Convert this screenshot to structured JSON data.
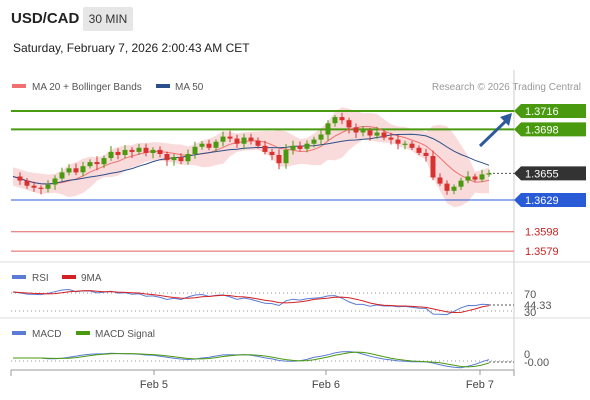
{
  "header": {
    "symbol": "USD/CAD",
    "timeframe": "30 MIN",
    "datetime": "Saturday, February 7, 2026 2:00:43 AM CET"
  },
  "legend": {
    "ma20_label": "MA 20 + Bollinger Bands",
    "ma50_label": "MA 50",
    "ma20_color": "#f07070",
    "ma50_color": "#2b4f8a",
    "credit": "Research © 2026 Trading Central"
  },
  "chart_data": [
    {
      "type": "candlestick",
      "panel": "price",
      "x_labels": [
        "Feb 5",
        "Feb 6",
        "Feb 7"
      ],
      "ylim": [
        1.357,
        1.374
      ],
      "price_path": [
        1.3652,
        1.3648,
        1.3643,
        1.3641,
        1.364,
        1.3644,
        1.365,
        1.3656,
        1.366,
        1.3656,
        1.3662,
        1.3666,
        1.3664,
        1.367,
        1.3676,
        1.3673,
        1.3678,
        1.3676,
        1.368,
        1.3675,
        1.3678,
        1.3674,
        1.3668,
        1.3671,
        1.3667,
        1.3674,
        1.3681,
        1.3684,
        1.368,
        1.3686,
        1.3691,
        1.3689,
        1.3684,
        1.369,
        1.3687,
        1.3682,
        1.3676,
        1.3673,
        1.3665,
        1.3678,
        1.3682,
        1.3679,
        1.3684,
        1.3688,
        1.3693,
        1.3704,
        1.371,
        1.3707,
        1.37,
        1.3695,
        1.3697,
        1.3692,
        1.3695,
        1.369,
        1.3688,
        1.3684,
        1.3684,
        1.368,
        1.3675,
        1.3672,
        1.3651,
        1.3645,
        1.3638,
        1.3642,
        1.3648,
        1.3652,
        1.3649,
        1.3654,
        1.3655
      ],
      "levels": [
        {
          "value": "1.3716",
          "kind": "resistance",
          "color": "#4a9a0f"
        },
        {
          "value": "1.3698",
          "kind": "resistance",
          "color": "#4a9a0f"
        },
        {
          "value": "1.3655",
          "kind": "last_price",
          "color": "#333333"
        },
        {
          "value": "1.3629",
          "kind": "support",
          "color": "#2a5bd7"
        },
        {
          "value": "1.3598",
          "kind": "support",
          "color": "#e06060"
        },
        {
          "value": "1.3579",
          "kind": "support",
          "color": "#e06060"
        }
      ],
      "forecast_arrow_target": 1.3716,
      "bollinger_color": "#f9d2d2",
      "candle_up_color": "#4a9a0f",
      "candle_down_color": "#d93030"
    },
    {
      "type": "line",
      "panel": "rsi",
      "series": [
        {
          "name": "RSI",
          "color": "#5b7bd5"
        },
        {
          "name": "9MA",
          "color": "#d42020"
        }
      ],
      "ticks": [
        "70",
        "30"
      ],
      "last_value": "44.33"
    },
    {
      "type": "line",
      "panel": "macd",
      "series": [
        {
          "name": "MACD",
          "color": "#5b7bd5"
        },
        {
          "name": "MACD Signal",
          "color": "#4a9a0f"
        }
      ],
      "ticks": [
        "0"
      ],
      "last_value": "-0.00"
    }
  ]
}
